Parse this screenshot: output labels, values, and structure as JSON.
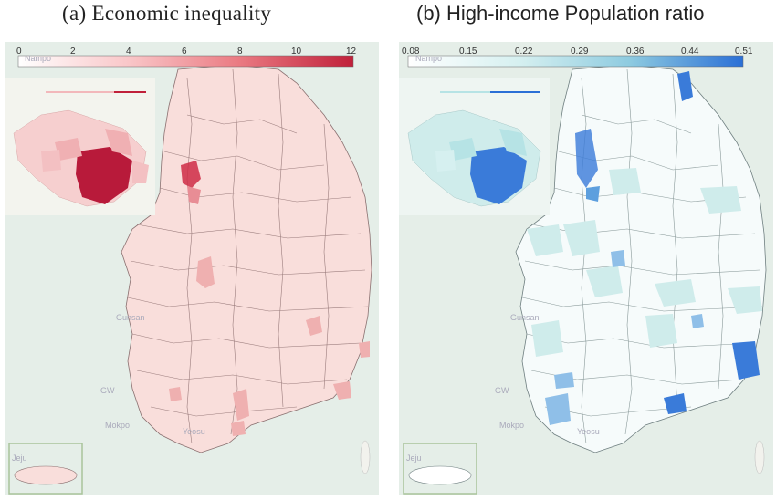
{
  "panels": [
    {
      "title": "(a) Economic inequality",
      "legend": {
        "ticks": [
          "0",
          "2",
          "4",
          "6",
          "8",
          "10",
          "12"
        ],
        "colors": [
          "#ffffff",
          "#fde3e3",
          "#f9c6c8",
          "#f3a4a8",
          "#ea7a82",
          "#dc4b5b",
          "#c0203a"
        ]
      },
      "base_fill": "#f9dedb",
      "highlight_colors": [
        "#efb0b0",
        "#e88d95",
        "#cf2b45"
      ]
    },
    {
      "title": "(b) High-income Population ratio",
      "legend": {
        "ticks": [
          "0.08",
          "0.15",
          "0.22",
          "0.29",
          "0.36",
          "0.44",
          "0.51"
        ],
        "colors": [
          "#ffffff",
          "#edf8f8",
          "#d6f0f0",
          "#b6e3e5",
          "#8ecbe0",
          "#5d9fde",
          "#2a6fd6"
        ]
      },
      "base_fill": "#f6fbfb",
      "highlight_colors": [
        "#bfe6e6",
        "#8fbfe8",
        "#3a7bd9"
      ]
    }
  ],
  "basemap_labels": [
    "Nampo",
    "Gunsan",
    "Mokpo",
    "Yeosu",
    "Jeju",
    "GW"
  ],
  "colors": {
    "sea": "#e5eee8",
    "land": "#f2f2ed",
    "border": "#8a7070"
  }
}
